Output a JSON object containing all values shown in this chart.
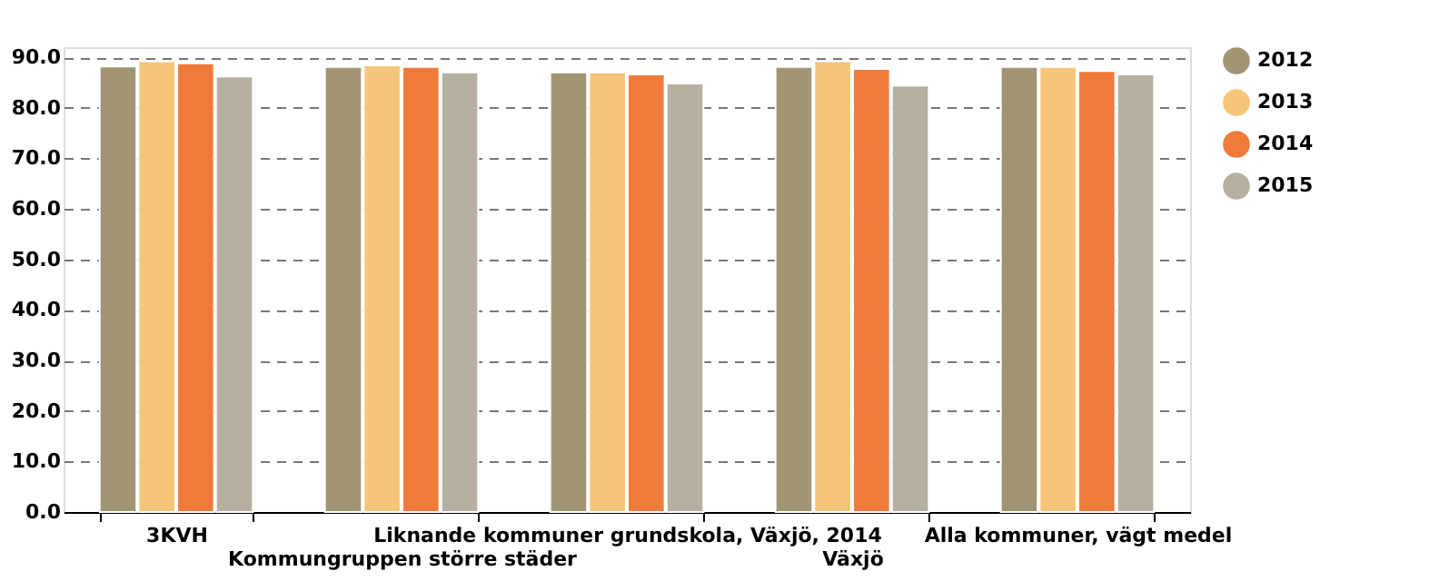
{
  "chart_data": {
    "type": "bar",
    "categories": [
      "3KVH",
      "Kommungruppen större städer",
      "Liknande kommuner grundskola, Växjö, 2014",
      "Växjö",
      "Alla kommuner, vägt medel"
    ],
    "series": [
      {
        "name": "2012",
        "color": "#a09473",
        "values": [
          88.2,
          88.1,
          87.0,
          88.1,
          88.1
        ]
      },
      {
        "name": "2013",
        "color": "#f5c57a",
        "values": [
          89.2,
          88.4,
          87.0,
          89.2,
          88.1
        ]
      },
      {
        "name": "2014",
        "color": "#f07a3a",
        "values": [
          88.8,
          88.1,
          86.6,
          87.7,
          87.3
        ]
      },
      {
        "name": "2015",
        "color": "#b5b0a0",
        "values": [
          86.2,
          87.0,
          84.8,
          84.4,
          86.6
        ]
      }
    ],
    "ylim": [
      0,
      92
    ],
    "yticks": [
      {
        "value": 0,
        "label": "0.0"
      },
      {
        "value": 10,
        "label": "10.0"
      },
      {
        "value": 20,
        "label": "20.0"
      },
      {
        "value": 30,
        "label": "30.0"
      },
      {
        "value": 40,
        "label": "40.0"
      },
      {
        "value": 50,
        "label": "50.0"
      },
      {
        "value": 60,
        "label": "60.0"
      },
      {
        "value": 70,
        "label": "70.0"
      },
      {
        "value": 80,
        "label": "80.0"
      },
      {
        "value": 90,
        "label": "90.0"
      }
    ],
    "grid": "y",
    "legend": "right"
  }
}
